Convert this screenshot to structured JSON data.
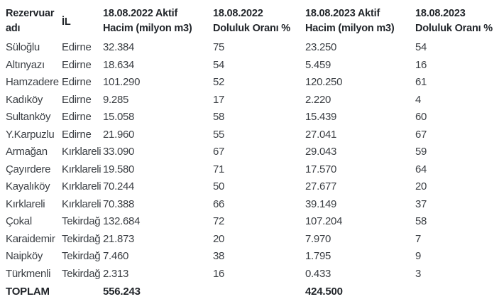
{
  "colors": {
    "background": "#ffffff",
    "header_text": "#21252a",
    "body_text": "#3b3f44",
    "total_text": "#21252a"
  },
  "display": {
    "header": {
      "col1": {
        "line1": "Rezervuar",
        "line2": "adı"
      },
      "col2": {
        "line1": "İL"
      },
      "col3": {
        "line1": "18.08.2022 Aktif",
        "line2": "Hacim (milyon m3)"
      },
      "col4": {
        "line1": "18.08.2022",
        "line2": "Doluluk Oranı %"
      },
      "col5": {
        "line1": "18.08.2023 Aktif",
        "line2": "Hacim (milyon m3)"
      },
      "col6": {
        "line1": "18.08.2023",
        "line2": "Doluluk Oranı %"
      }
    }
  },
  "chart_data": {
    "type": "table",
    "title": "",
    "columns": [
      "Rezervuar adı",
      "İL",
      "18.08.2022 Aktif Hacim (milyon m3)",
      "18.08.2022 Doluluk Oranı %",
      "18.08.2023 Aktif Hacim (milyon m3)",
      "18.08.2023 Doluluk Oranı %"
    ],
    "rows": [
      [
        "Süloğlu",
        "Edirne",
        "32.384",
        "75",
        "23.250",
        "54"
      ],
      [
        "Altınyazı",
        "Edirne",
        "18.634",
        "54",
        "5.459",
        "16"
      ],
      [
        "Hamzadere",
        "Edirne",
        "101.290",
        "52",
        "120.250",
        "61"
      ],
      [
        "Kadıköy",
        "Edirne",
        "9.285",
        "17",
        "2.220",
        "4"
      ],
      [
        "Sultanköy",
        "Edirne",
        "15.058",
        "58",
        "15.439",
        "60"
      ],
      [
        "Y.Karpuzlu",
        "Edirne",
        "21.960",
        "55",
        "27.041",
        "67"
      ],
      [
        "Armağan",
        "Kırklareli",
        "33.090",
        "67",
        "29.043",
        "59"
      ],
      [
        "Çayırdere",
        "Kırklareli",
        "19.580",
        "71",
        "17.570",
        "64"
      ],
      [
        "Kayalıköy",
        "Kırklareli",
        "70.244",
        "50",
        "27.677",
        "20"
      ],
      [
        "Kırklareli",
        "Kırklareli",
        "70.388",
        "66",
        "39.149",
        "37"
      ],
      [
        "Çokal",
        "Tekirdağ",
        "132.684",
        "72",
        "107.204",
        "58"
      ],
      [
        "Karaidemir",
        "Tekirdağ",
        "21.873",
        "20",
        "7.970",
        "7"
      ],
      [
        "Naipköy",
        "Tekirdağ",
        "7.460",
        "38",
        "1.795",
        "9"
      ],
      [
        "Türkmenli",
        "Tekirdağ",
        "2.313",
        "16",
        "0.433",
        "3"
      ]
    ],
    "total_row": [
      "TOPLAM",
      "",
      "556.243",
      "",
      "424.500",
      ""
    ]
  }
}
